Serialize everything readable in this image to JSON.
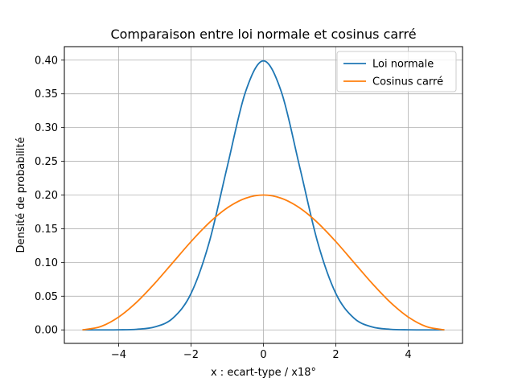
{
  "chart_data": {
    "type": "line",
    "title": "Comparaison entre loi normale et cosinus carré",
    "xlabel": "x : ecart-type / x18°",
    "ylabel": "Densité de probabilité",
    "xlim": [
      -5.5,
      5.5
    ],
    "ylim": [
      -0.02,
      0.42
    ],
    "xticks": [
      -4,
      -2,
      0,
      2,
      4
    ],
    "xtick_labels": [
      "−4",
      "−2",
      "0",
      "2",
      "4"
    ],
    "yticks": [
      0.0,
      0.05,
      0.1,
      0.15,
      0.2,
      0.25,
      0.3,
      0.35,
      0.4
    ],
    "ytick_labels": [
      "0.00",
      "0.05",
      "0.10",
      "0.15",
      "0.20",
      "0.25",
      "0.30",
      "0.35",
      "0.40"
    ],
    "grid": true,
    "legend_position": "top-right",
    "x": [
      -5.0,
      -4.5,
      -4.0,
      -3.5,
      -3.0,
      -2.5,
      -2.0,
      -1.5,
      -1.0,
      -0.5,
      0.0,
      0.5,
      1.0,
      1.5,
      2.0,
      2.5,
      3.0,
      3.5,
      4.0,
      4.5,
      5.0
    ],
    "series": [
      {
        "name": "Loi normale",
        "color": "#1f77b4",
        "values": [
          0.0,
          0.0,
          0.0001,
          0.0009,
          0.0044,
          0.0175,
          0.054,
          0.1295,
          0.242,
          0.3521,
          0.3989,
          0.3521,
          0.242,
          0.1295,
          0.054,
          0.0175,
          0.0044,
          0.0009,
          0.0001,
          0.0,
          0.0
        ]
      },
      {
        "name": "Cosinus carré",
        "color": "#ff7f0e",
        "values": [
          0.0,
          0.0049,
          0.0191,
          0.0412,
          0.0691,
          0.1,
          0.1309,
          0.1588,
          0.1809,
          0.1951,
          0.2,
          0.1951,
          0.1809,
          0.1588,
          0.1309,
          0.1,
          0.0691,
          0.0412,
          0.0191,
          0.0049,
          0.0
        ]
      }
    ]
  }
}
